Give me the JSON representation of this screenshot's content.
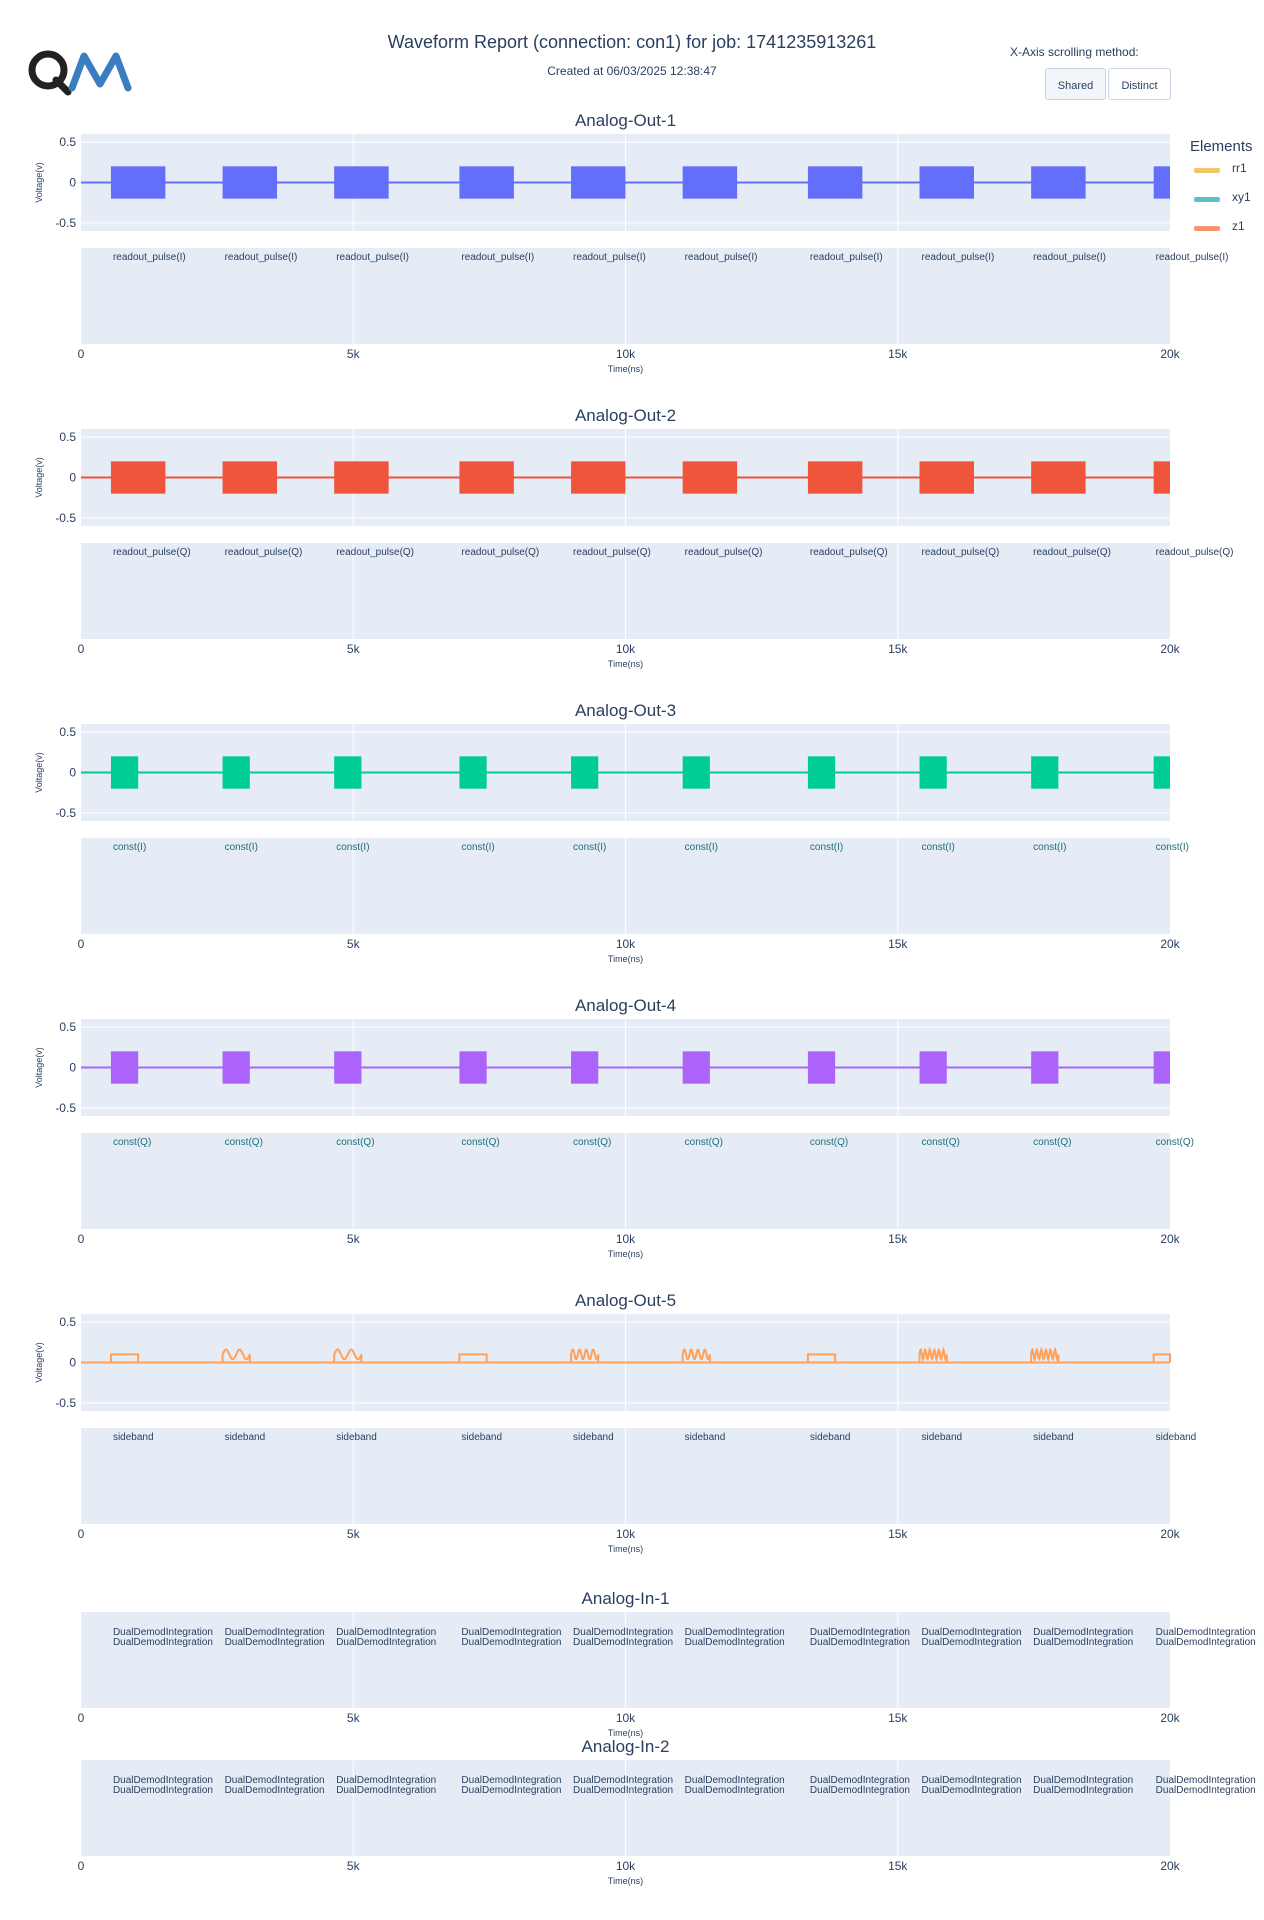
{
  "header": {
    "title": "Waveform Report (connection: con1) for job: 1741235913261",
    "subtitle": "Created at 06/03/2025 12:38:47"
  },
  "controls": {
    "scroll_label": "X-Axis scrolling method:",
    "shared_label": "Shared",
    "distinct_label": "Distinct"
  },
  "legend": {
    "title": "Elements",
    "items": [
      {
        "label": "rr1",
        "color": "#f2c66f"
      },
      {
        "label": "xy1",
        "color": "#5bc0c8"
      },
      {
        "label": "z1",
        "color": "#f5956d"
      }
    ]
  },
  "chart_data": {
    "type": "line",
    "xlabel": "Time(ns)",
    "ylabel": "Voltage(v)",
    "xlim": [
      0,
      20000
    ],
    "ylim": [
      -0.6,
      0.6
    ],
    "x_ticks": [
      "0",
      "5k",
      "10k",
      "15k",
      "20k"
    ],
    "y_ticks": [
      "0.5",
      "0",
      "-0.5"
    ],
    "panels": [
      {
        "name": "Analog-Out-1",
        "kind": "out",
        "color": "#636efa",
        "pulse_style": "block",
        "amplitude": 0.2,
        "pulses": [
          [
            550,
            1550
          ],
          [
            2600,
            3600
          ],
          [
            4650,
            5650
          ],
          [
            6950,
            7950
          ],
          [
            9000,
            10000
          ],
          [
            11050,
            12050
          ],
          [
            13350,
            14350
          ],
          [
            15400,
            16400
          ],
          [
            17450,
            18450
          ],
          [
            19700,
            20000
          ]
        ],
        "label": "readout_pulse(I)",
        "label_color": "#2a3f5f",
        "label_highlight": "dout_pulse",
        "highlight_color": "#c9a23a"
      },
      {
        "name": "Analog-Out-2",
        "kind": "out",
        "color": "#ef553b",
        "pulse_style": "block",
        "amplitude": 0.2,
        "pulses": [
          [
            550,
            1550
          ],
          [
            2600,
            3600
          ],
          [
            4650,
            5650
          ],
          [
            6950,
            7950
          ],
          [
            9000,
            10000
          ],
          [
            11050,
            12050
          ],
          [
            13350,
            14350
          ],
          [
            15400,
            16400
          ],
          [
            17450,
            18450
          ],
          [
            19700,
            20000
          ]
        ],
        "label": "readout_pulse(Q)",
        "label_color": "#2a3f5f",
        "label_highlight": "dout_pulse",
        "highlight_color": "#c9a23a"
      },
      {
        "name": "Analog-Out-3",
        "kind": "out",
        "color": "#00cc96",
        "pulse_style": "block",
        "amplitude": 0.2,
        "pulses": [
          [
            550,
            1050
          ],
          [
            2600,
            3100
          ],
          [
            4650,
            5150
          ],
          [
            6950,
            7450
          ],
          [
            9000,
            9500
          ],
          [
            11050,
            11550
          ],
          [
            13350,
            13850
          ],
          [
            15400,
            15900
          ],
          [
            17450,
            17950
          ],
          [
            19700,
            20000
          ]
        ],
        "label": "const(I)",
        "label_color": "#1f6f78",
        "label_highlight": "",
        "highlight_color": ""
      },
      {
        "name": "Analog-Out-4",
        "kind": "out",
        "color": "#ab63fa",
        "pulse_style": "block",
        "amplitude": 0.2,
        "pulses": [
          [
            550,
            1050
          ],
          [
            2600,
            3100
          ],
          [
            4650,
            5150
          ],
          [
            6950,
            7450
          ],
          [
            9000,
            9500
          ],
          [
            11050,
            11550
          ],
          [
            13350,
            13850
          ],
          [
            15400,
            15900
          ],
          [
            17450,
            17950
          ],
          [
            19700,
            20000
          ]
        ],
        "label": "const(Q)",
        "label_color": "#1f6f78",
        "label_highlight": "",
        "highlight_color": ""
      },
      {
        "name": "Analog-Out-5",
        "kind": "out",
        "color": "#ffa15a",
        "pulse_style": "sideband",
        "amplitude": 0.1,
        "pulses": [
          [
            550,
            1050
          ],
          [
            2600,
            3100
          ],
          [
            4650,
            5150
          ],
          [
            6950,
            7450
          ],
          [
            9000,
            9500
          ],
          [
            11050,
            11550
          ],
          [
            13350,
            13850
          ],
          [
            15400,
            15900
          ],
          [
            17450,
            17950
          ],
          [
            19700,
            20000
          ]
        ],
        "sideband_cycles": [
          0,
          2,
          2,
          0,
          4,
          4,
          0,
          6,
          6,
          0
        ],
        "label": "sideband",
        "label_color": "#2a3f5f",
        "label_highlight": "deban",
        "highlight_color": "#d0604a"
      },
      {
        "name": "Analog-In-1",
        "kind": "in",
        "pulses": [
          [
            550,
            1550
          ],
          [
            2600,
            3600
          ],
          [
            4650,
            5650
          ],
          [
            6950,
            7950
          ],
          [
            9000,
            10000
          ],
          [
            11050,
            12050
          ],
          [
            13350,
            14350
          ],
          [
            15400,
            16400
          ],
          [
            17450,
            18450
          ],
          [
            19700,
            20000
          ]
        ],
        "label": "DualDemodIntegration",
        "label_color": "#2a3f5f",
        "label_highlight": "Demod",
        "highlight_color": "#c9a23a"
      },
      {
        "name": "Analog-In-2",
        "kind": "in",
        "pulses": [
          [
            550,
            1550
          ],
          [
            2600,
            3600
          ],
          [
            4650,
            5650
          ],
          [
            6950,
            7950
          ],
          [
            9000,
            10000
          ],
          [
            11050,
            12050
          ],
          [
            13350,
            14350
          ],
          [
            15400,
            16400
          ],
          [
            17450,
            18450
          ],
          [
            19700,
            20000
          ]
        ],
        "label": "DualDemodIntegration",
        "label_color": "#2a3f5f",
        "label_highlight": "Demod",
        "highlight_color": "#c9a23a"
      }
    ]
  }
}
